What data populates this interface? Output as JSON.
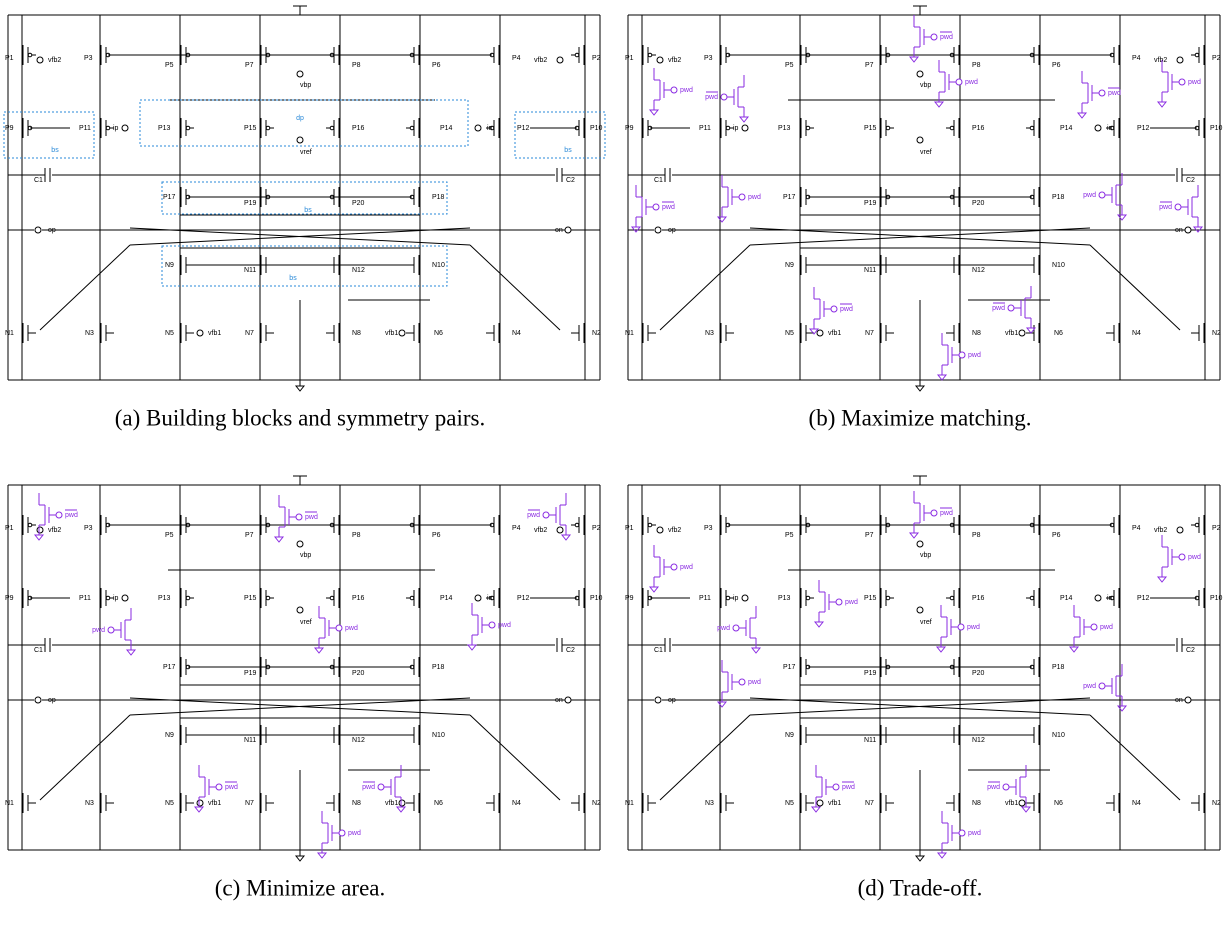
{
  "schematic": {
    "labels": [
      "P1",
      "vfb2",
      "P3",
      "P5",
      "P7",
      "P8",
      "P6",
      "P4",
      "vfb2",
      "P2",
      "vbp",
      "P9",
      "P11",
      "ip",
      "P13",
      "P15",
      "P16",
      "P14",
      "in",
      "P12",
      "P10",
      "vref",
      "C1",
      "C2",
      "P17",
      "P19",
      "P20",
      "P18",
      "op",
      "on",
      "N9",
      "N11",
      "N12",
      "N10",
      "N1",
      "N3",
      "N5",
      "vfb1",
      "N7",
      "N8",
      "vfb1",
      "N6",
      "N4",
      "N2"
    ]
  },
  "panels": [
    {
      "caption": "(a) Building blocks and symmetry pairs.",
      "annotations": [
        "dp",
        "bs",
        "bs",
        "bs",
        "bs"
      ]
    },
    {
      "caption": "(b) Maximize matching.",
      "switches": [
        {
          "text": "pwd",
          "inverted": false
        },
        {
          "text": "pwd",
          "inverted": true
        },
        {
          "text": "pwd",
          "inverted": true
        },
        {
          "text": "pwd",
          "inverted": false
        },
        {
          "text": "pwd",
          "inverted": true
        },
        {
          "text": "pwd",
          "inverted": false
        },
        {
          "text": "pwd",
          "inverted": true
        },
        {
          "text": "pwd",
          "inverted": false
        },
        {
          "text": "pwd",
          "inverted": false
        },
        {
          "text": "pwd",
          "inverted": true
        },
        {
          "text": "pwd",
          "inverted": true
        },
        {
          "text": "pwd",
          "inverted": true
        },
        {
          "text": "pwd",
          "inverted": false
        }
      ]
    },
    {
      "caption": "(c) Minimize area.",
      "switches": [
        {
          "text": "pwd",
          "inverted": true
        },
        {
          "text": "pwd",
          "inverted": true
        },
        {
          "text": "pwd",
          "inverted": true
        },
        {
          "text": "pwd",
          "inverted": false
        },
        {
          "text": "pwd",
          "inverted": false
        },
        {
          "text": "pwd",
          "inverted": false
        },
        {
          "text": "pwd",
          "inverted": true
        },
        {
          "text": "pwd",
          "inverted": true
        },
        {
          "text": "pwd",
          "inverted": false
        }
      ]
    },
    {
      "caption": "(d) Trade-off.",
      "switches": [
        {
          "text": "pwd",
          "inverted": true
        },
        {
          "text": "pwd",
          "inverted": false
        },
        {
          "text": "pwd",
          "inverted": false
        },
        {
          "text": "pwd",
          "inverted": false
        },
        {
          "text": "pwd",
          "inverted": false
        },
        {
          "text": "pwd",
          "inverted": false
        },
        {
          "text": "pwd",
          "inverted": false
        },
        {
          "text": "pwd",
          "inverted": false
        },
        {
          "text": "pwd",
          "inverted": false
        },
        {
          "text": "pwd",
          "inverted": true
        },
        {
          "text": "pwd",
          "inverted": true
        },
        {
          "text": "pwd",
          "inverted": false
        }
      ]
    }
  ]
}
